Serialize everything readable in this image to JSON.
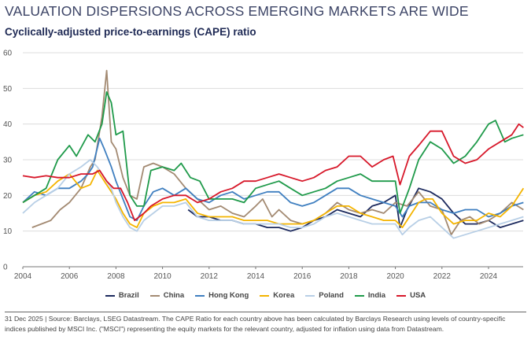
{
  "header": {
    "title": "VALUATION DISPERSIONS ACROSS EMERGING MARKETS ARE WIDE",
    "subtitle": "Cyclically-adjusted price-to-earnings (CAPE) ratio"
  },
  "footer": {
    "text": "31 Dec 2025 | Source: Barclays, LSEG Datastream. The CAPE Ratio for each country above has been calculated by Barclays Research using levels of country-specific indices published by MSCI Inc. (\"MSCI\") representing the equity markets for the relevant country, adjusted for inflation using data from Datastream."
  },
  "chart_data": {
    "type": "line",
    "title": "Cyclically-adjusted price-to-earnings (CAPE) ratio",
    "xlabel": "",
    "ylabel": "",
    "xlim": [
      2004,
      2025.6
    ],
    "ylim": [
      0,
      60
    ],
    "x_ticks": [
      2004,
      2006,
      2008,
      2010,
      2012,
      2014,
      2016,
      2018,
      2020,
      2022,
      2024
    ],
    "y_ticks": [
      0,
      10,
      20,
      30,
      40,
      50,
      60
    ],
    "grid": "horizontal",
    "legend_position": "bottom",
    "series": [
      {
        "name": "Brazil",
        "color": "#1c2a5e",
        "x": [
          2011.1,
          2011.5,
          2012,
          2012.5,
          2013,
          2013.5,
          2014,
          2014.5,
          2015,
          2015.5,
          2016,
          2016.5,
          2017,
          2017.5,
          2018,
          2018.5,
          2019,
          2019.5,
          2020,
          2020.2,
          2020.5,
          2021,
          2021.5,
          2022,
          2022.5,
          2023,
          2023.5,
          2024,
          2024.5,
          2025,
          2025.5
        ],
        "values": [
          16,
          14,
          14,
          13,
          13,
          12,
          12,
          11,
          11,
          10,
          11,
          13,
          14,
          16,
          15,
          14,
          17,
          18,
          20,
          11,
          16,
          22,
          21,
          19,
          15,
          12,
          12,
          13,
          11,
          12,
          13
        ]
      },
      {
        "name": "China",
        "color": "#a38a72",
        "x": [
          2004.4,
          2004.8,
          2005.2,
          2005.6,
          2006,
          2006.5,
          2006.9,
          2007.1,
          2007.4,
          2007.6,
          2007.8,
          2008,
          2008.3,
          2008.6,
          2008.9,
          2009.2,
          2009.6,
          2010,
          2010.5,
          2011,
          2011.5,
          2012,
          2012.5,
          2013,
          2013.5,
          2014,
          2014.3,
          2014.7,
          2015,
          2015.5,
          2016,
          2016.5,
          2017,
          2017.5,
          2018,
          2018.5,
          2019,
          2019.5,
          2020,
          2020.5,
          2021,
          2021.5,
          2022,
          2022.4,
          2022.8,
          2023.2,
          2023.6,
          2024,
          2024.5,
          2025,
          2025.5
        ],
        "values": [
          11,
          12,
          13,
          16,
          18,
          22,
          28,
          30,
          42,
          55,
          35,
          33,
          25,
          20,
          19,
          28,
          29,
          28,
          26,
          22,
          19,
          16,
          17,
          15,
          14,
          17,
          19,
          14,
          16,
          13,
          12,
          13,
          15,
          18,
          16,
          15,
          16,
          15,
          18,
          17,
          21,
          17,
          16,
          9,
          13,
          14,
          12,
          13,
          15,
          18,
          16
        ]
      },
      {
        "name": "Hong Kong",
        "color": "#3f7fc0",
        "x": [
          2004,
          2004.5,
          2005,
          2005.5,
          2006,
          2006.5,
          2006.8,
          2007,
          2007.3,
          2007.5,
          2007.8,
          2008,
          2008.3,
          2008.6,
          2008.9,
          2009.2,
          2009.6,
          2010,
          2010.5,
          2011,
          2011.5,
          2012,
          2012.5,
          2013,
          2013.5,
          2014,
          2014.5,
          2015,
          2015.5,
          2016,
          2016.5,
          2017,
          2017.5,
          2018,
          2018.5,
          2019,
          2019.5,
          2020,
          2020.3,
          2020.6,
          2021,
          2021.5,
          2022,
          2022.5,
          2023,
          2023.5,
          2024,
          2024.5,
          2025,
          2025.5
        ],
        "values": [
          18,
          21,
          20,
          22,
          22,
          24,
          26,
          28,
          36,
          33,
          28,
          24,
          19,
          14,
          13,
          17,
          21,
          22,
          20,
          22,
          19,
          18,
          20,
          21,
          19,
          20,
          21,
          21,
          18,
          17,
          18,
          20,
          22,
          22,
          20,
          19,
          18,
          17,
          14,
          17,
          18,
          18,
          16,
          15,
          16,
          16,
          14,
          15,
          17,
          18
        ]
      },
      {
        "name": "Korea",
        "color": "#f4b400",
        "x": [
          2004,
          2004.5,
          2005,
          2005.5,
          2006,
          2006.5,
          2006.9,
          2007.2,
          2007.5,
          2007.8,
          2008,
          2008.3,
          2008.6,
          2008.9,
          2009.2,
          2009.6,
          2010,
          2010.5,
          2011,
          2011.5,
          2012,
          2012.5,
          2013,
          2013.5,
          2014,
          2014.5,
          2015,
          2015.5,
          2016,
          2016.5,
          2017,
          2017.5,
          2018,
          2018.5,
          2019,
          2019.5,
          2020,
          2020.3,
          2020.6,
          2021,
          2021.3,
          2021.6,
          2022,
          2022.5,
          2023,
          2023.5,
          2024,
          2024.5,
          2025,
          2025.3,
          2025.5
        ],
        "values": [
          18,
          20,
          21,
          24,
          26,
          22,
          23,
          27,
          24,
          21,
          19,
          15,
          12,
          11,
          15,
          17,
          18,
          18,
          19,
          15,
          14,
          14,
          14,
          13,
          13,
          13,
          12,
          12,
          12,
          13,
          15,
          17,
          17,
          15,
          14,
          13,
          13,
          11,
          14,
          18,
          19,
          19,
          15,
          12,
          13,
          13,
          15,
          14,
          17,
          20,
          22
        ]
      },
      {
        "name": "Poland",
        "color": "#b8cfe6",
        "x": [
          2004,
          2004.5,
          2005,
          2005.5,
          2006,
          2006.5,
          2006.9,
          2007.2,
          2007.5,
          2007.8,
          2008,
          2008.3,
          2008.6,
          2008.9,
          2009.2,
          2009.6,
          2010,
          2010.5,
          2011,
          2011.5,
          2012,
          2012.5,
          2013,
          2013.5,
          2014,
          2014.5,
          2015,
          2015.5,
          2016,
          2016.5,
          2017,
          2017.5,
          2018,
          2018.5,
          2019,
          2019.5,
          2020,
          2020.3,
          2020.6,
          2021,
          2021.5,
          2022,
          2022.5,
          2023,
          2023.5,
          2024,
          2024.5,
          2025,
          2025.5
        ],
        "values": [
          15,
          18,
          20,
          22,
          26,
          28,
          30,
          28,
          25,
          22,
          18,
          14,
          11,
          10,
          13,
          15,
          17,
          17,
          18,
          14,
          13,
          13,
          13,
          12,
          12,
          12,
          12,
          11,
          11,
          12,
          14,
          15,
          14,
          13,
          12,
          12,
          12,
          9,
          11,
          13,
          14,
          11,
          8,
          9,
          10,
          11,
          12,
          13,
          14
        ]
      },
      {
        "name": "India",
        "color": "#1f9a4a",
        "x": [
          2004,
          2004.5,
          2005,
          2005.5,
          2006,
          2006.3,
          2006.8,
          2007.1,
          2007.4,
          2007.6,
          2007.8,
          2008,
          2008.3,
          2008.6,
          2008.9,
          2009.2,
          2009.5,
          2010,
          2010.5,
          2010.8,
          2011.2,
          2011.6,
          2012,
          2012.5,
          2013,
          2013.5,
          2014,
          2014.5,
          2015,
          2015.5,
          2016,
          2016.5,
          2017,
          2017.5,
          2018,
          2018.5,
          2019,
          2019.5,
          2020,
          2020.2,
          2020.6,
          2021,
          2021.5,
          2022,
          2022.5,
          2023,
          2023.5,
          2024,
          2024.3,
          2024.7,
          2025,
          2025.5
        ],
        "values": [
          18,
          20,
          22,
          30,
          34,
          31,
          37,
          35,
          40,
          49,
          46,
          37,
          38,
          20,
          17,
          17,
          27,
          28,
          27,
          29,
          25,
          24,
          19,
          19,
          19,
          18,
          22,
          23,
          24,
          22,
          20,
          21,
          22,
          24,
          25,
          26,
          24,
          24,
          24,
          15,
          22,
          30,
          35,
          33,
          29,
          31,
          35,
          40,
          41,
          35,
          36,
          37
        ]
      },
      {
        "name": "USA",
        "color": "#d7182a",
        "x": [
          2004,
          2004.5,
          2005,
          2005.5,
          2006,
          2006.5,
          2007,
          2007.3,
          2007.6,
          2007.9,
          2008.2,
          2008.5,
          2008.8,
          2009.2,
          2009.5,
          2010,
          2010.5,
          2011,
          2011.5,
          2012,
          2012.5,
          2013,
          2013.5,
          2014,
          2014.5,
          2015,
          2015.5,
          2016,
          2016.5,
          2017,
          2017.5,
          2018,
          2018.5,
          2019,
          2019.5,
          2019.9,
          2020.2,
          2020.6,
          2021,
          2021.5,
          2022,
          2022.5,
          2023,
          2023.5,
          2024,
          2024.5,
          2025,
          2025.3,
          2025.5
        ],
        "values": [
          25.5,
          25,
          25.5,
          25,
          25,
          26,
          26,
          27,
          24,
          22,
          22,
          18,
          13,
          15,
          17,
          19,
          20,
          20,
          18,
          19,
          21,
          22,
          24,
          24,
          25,
          26,
          25,
          24,
          25,
          27,
          28,
          31,
          31,
          28,
          30,
          31,
          23,
          31,
          34,
          38,
          38,
          31,
          29,
          30,
          33,
          35,
          37,
          40,
          39
        ]
      }
    ]
  }
}
